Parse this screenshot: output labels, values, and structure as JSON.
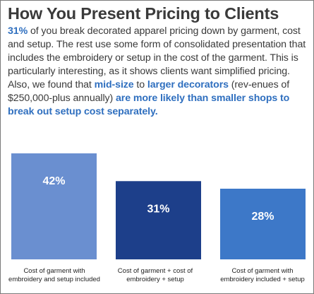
{
  "title": "How You Present Pricing to Clients",
  "body": {
    "s1_hl": "31%",
    "s1": " of you break decorated apparel pricing down by garment, cost and setup. The rest use some form of consolidated presentation that includes the embroidery or setup in the cost of the garment. This is particularly interesting, as it shows clients want simplified pricing. Also, we found that ",
    "s2_hl": "mid-size",
    "s3": " to ",
    "s4_hl": "larger decorators",
    "s5": " (rev-enues of $250,000-plus annually) ",
    "s6_hl": "are more likely than smaller shops to break out setup cost separately."
  },
  "colors": {
    "accent": "#2f6fbf",
    "text": "#3a3a3a",
    "bar1": "#6a8fd0",
    "bar2": "#1d3f8a",
    "bar3": "#3d78c8"
  },
  "chart_data": {
    "type": "bar",
    "categories": [
      [
        "Cost of garment with",
        "embroidery and setup included"
      ],
      [
        "Cost of garment + cost of",
        "embroidery + setup"
      ],
      [
        "Cost of garment with",
        "embroidery included + setup"
      ]
    ],
    "values": [
      42,
      31,
      28
    ],
    "data_labels": [
      "42%",
      "31%",
      "28%"
    ],
    "ylim": [
      0,
      42
    ],
    "grid": false,
    "legend": "none"
  }
}
